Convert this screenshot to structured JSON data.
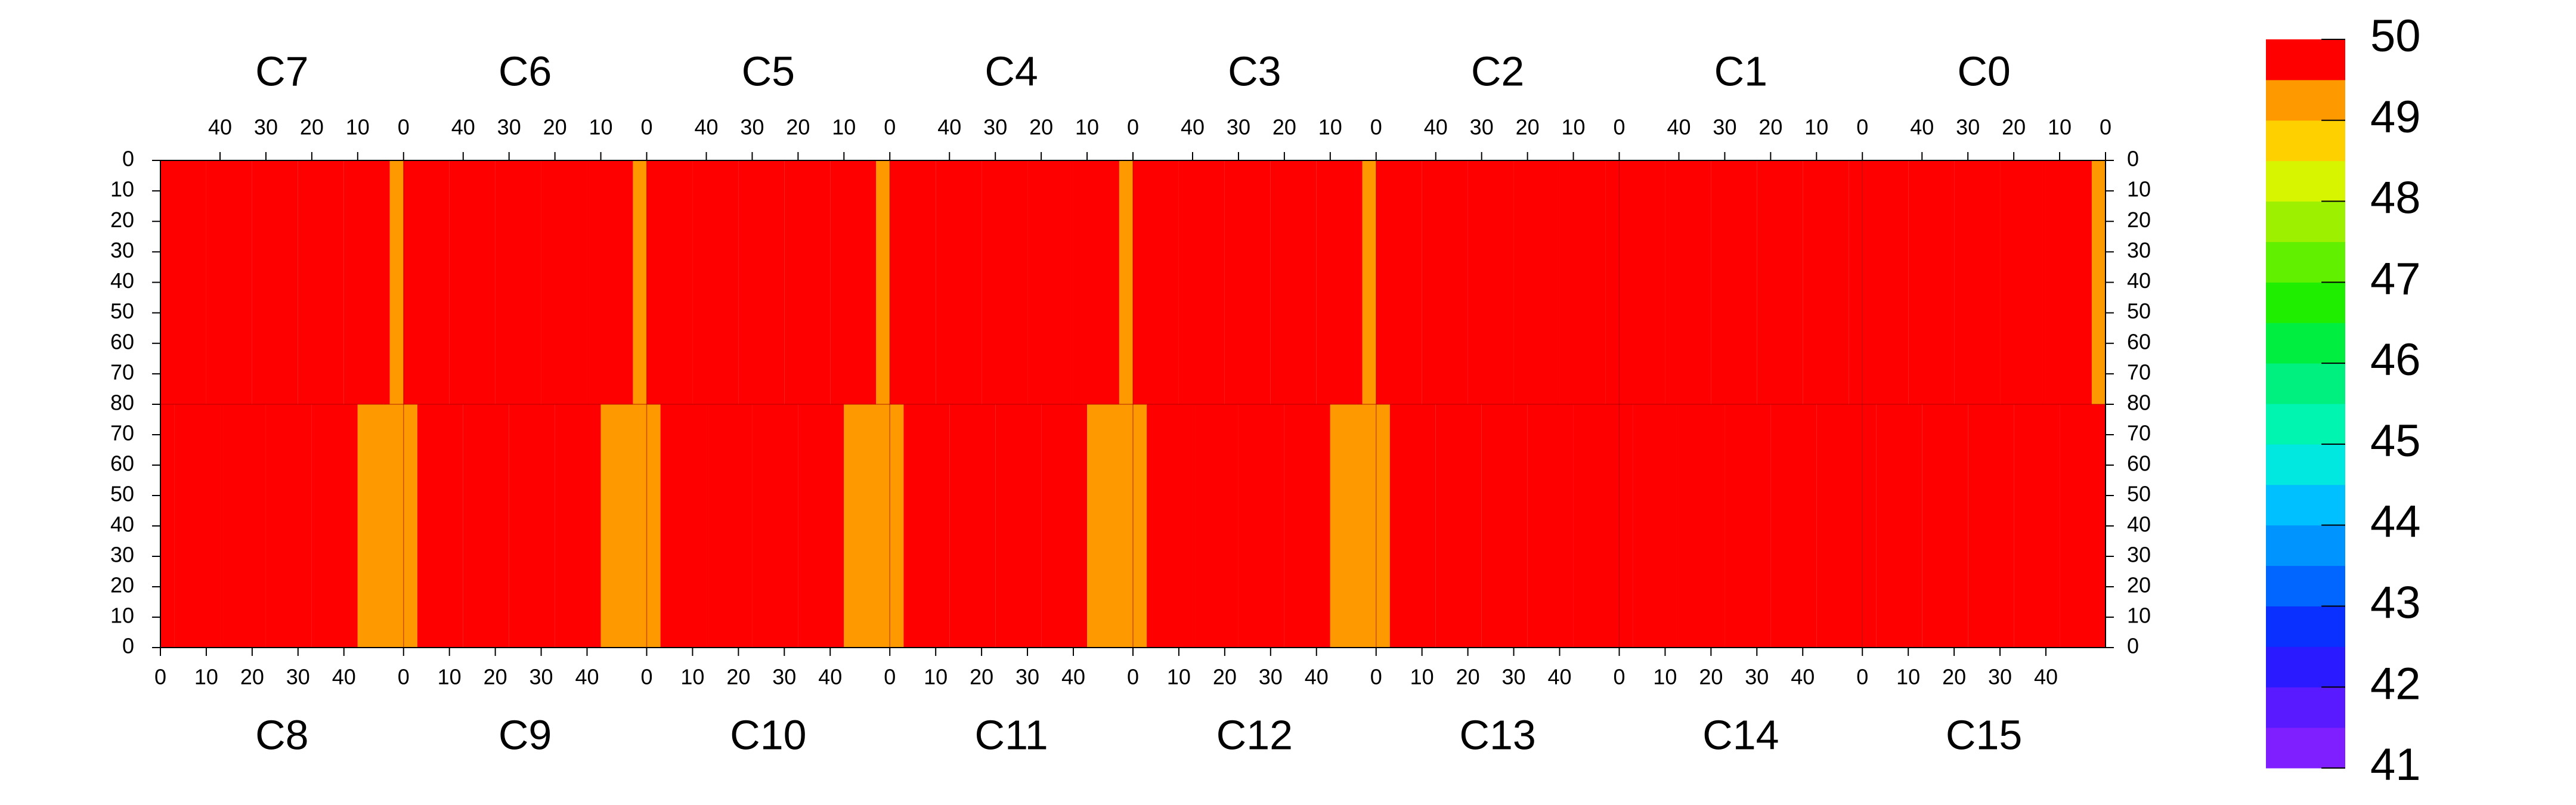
{
  "chart_data": {
    "type": "heatmap",
    "xlim": [
      0,
      53
    ],
    "ylim": [
      0,
      80
    ],
    "xbins": [
      0,
      3,
      13,
      23,
      33,
      43,
      53
    ],
    "yticks": [
      0,
      10,
      20,
      30,
      40,
      50,
      60,
      70,
      80
    ],
    "zlim": [
      41,
      50
    ],
    "zticks": [
      41,
      42,
      43,
      44,
      45,
      46,
      47,
      48,
      49,
      50
    ],
    "palette": [
      "#7f1fff",
      "#5a1aff",
      "#2a1aff",
      "#0a30ff",
      "#0066ff",
      "#0094ff",
      "#00c0ff",
      "#00e8e0",
      "#00f5b0",
      "#00f080",
      "#00ee40",
      "#20ee00",
      "#60f000",
      "#9cf000",
      "#d8f500",
      "#ffd000",
      "#ff9900",
      "#ff0000"
    ],
    "top_panels": [
      {
        "name": "C7",
        "xticks": [
          40,
          30,
          20,
          10,
          0
        ],
        "values": [
          49.1,
          49.6,
          49.6,
          49.7,
          49.7,
          49.95
        ]
      },
      {
        "name": "C6",
        "xticks": [
          40,
          30,
          20,
          10,
          0
        ],
        "values": [
          49.2,
          49.6,
          49.6,
          49.7,
          49.7,
          49.7
        ]
      },
      {
        "name": "C5",
        "xticks": [
          40,
          30,
          20,
          10,
          0
        ],
        "values": [
          49.1,
          49.6,
          49.6,
          49.6,
          49.7,
          49.7
        ]
      },
      {
        "name": "C4",
        "xticks": [
          40,
          30,
          20,
          10,
          0
        ],
        "values": [
          49.1,
          49.6,
          49.6,
          49.7,
          49.7,
          49.7
        ]
      },
      {
        "name": "C3",
        "xticks": [
          40,
          30,
          20,
          10,
          0
        ],
        "values": [
          49.2,
          49.6,
          49.6,
          49.7,
          49.7,
          49.7
        ]
      },
      {
        "name": "C2",
        "xticks": [
          40,
          30,
          20,
          10,
          0
        ],
        "values": [
          49.6,
          49.9,
          49.9,
          49.8,
          49.7,
          49.7
        ]
      },
      {
        "name": "C1",
        "xticks": [
          40,
          30,
          20,
          10,
          0
        ],
        "values": [
          49.6,
          49.9,
          49.9,
          49.9,
          49.9,
          49.9
        ]
      },
      {
        "name": "C0",
        "xticks": [
          40,
          30,
          20,
          10,
          0
        ],
        "values": [
          49.4,
          49.8,
          49.8,
          49.8,
          49.8,
          49.8
        ]
      }
    ],
    "bottom_panels": [
      {
        "name": "C8",
        "xticks": [
          0,
          10,
          20,
          30,
          40
        ],
        "values": [
          49.95,
          49.9,
          49.7,
          49.6,
          49.6,
          49.3
        ]
      },
      {
        "name": "C9",
        "xticks": [
          0,
          10,
          20,
          30,
          40
        ],
        "values": [
          49.1,
          49.6,
          49.6,
          49.6,
          49.7,
          49.4
        ]
      },
      {
        "name": "C10",
        "xticks": [
          0,
          10,
          20,
          30,
          40
        ],
        "values": [
          49.1,
          49.6,
          49.6,
          49.6,
          49.6,
          49.3
        ]
      },
      {
        "name": "C11",
        "xticks": [
          0,
          10,
          20,
          30,
          40
        ],
        "values": [
          49.1,
          49.7,
          49.7,
          49.7,
          49.6,
          49.4
        ]
      },
      {
        "name": "C12",
        "xticks": [
          0,
          10,
          20,
          30,
          40
        ],
        "values": [
          49.1,
          49.6,
          49.6,
          49.7,
          49.7,
          49.4
        ]
      },
      {
        "name": "C13",
        "xticks": [
          0,
          10,
          20,
          30,
          40
        ],
        "values": [
          49.4,
          49.7,
          49.8,
          49.9,
          49.9,
          49.9
        ]
      },
      {
        "name": "C14",
        "xticks": [
          0,
          10,
          20,
          30,
          40
        ],
        "values": [
          49.9,
          49.9,
          49.9,
          49.9,
          49.9,
          49.8
        ]
      },
      {
        "name": "C15",
        "xticks": [
          0,
          10,
          20,
          30,
          40
        ],
        "values": [
          49.5,
          49.8,
          49.8,
          49.8,
          49.8,
          49.7
        ]
      }
    ]
  }
}
